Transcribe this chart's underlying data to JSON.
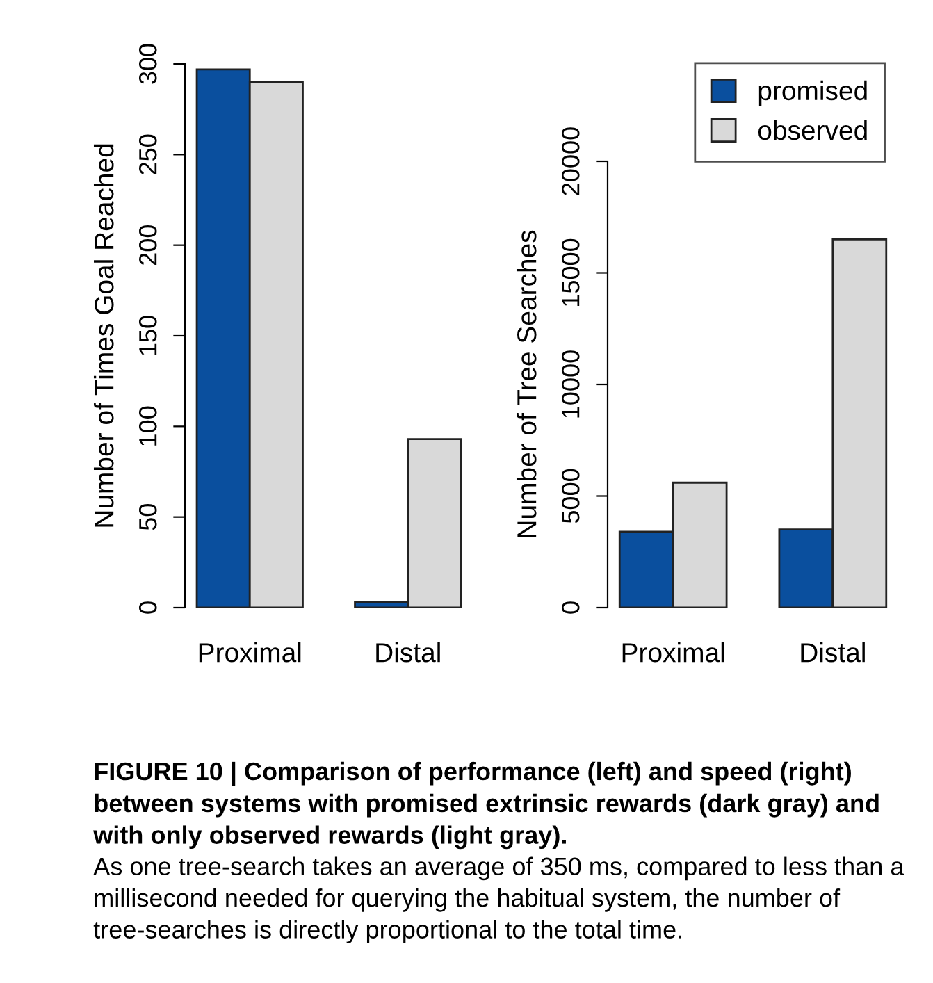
{
  "chart_data": [
    {
      "type": "bar",
      "categories": [
        "Proximal",
        "Distal"
      ],
      "ylabel": "Number of Times Goal Reached",
      "ylim": [
        0,
        300
      ],
      "yticks": [
        0,
        50,
        100,
        150,
        200,
        250,
        300
      ],
      "series": [
        {
          "color": "#0a4f9e",
          "values": [
            297,
            3
          ]
        },
        {
          "color": "#d9d9d9",
          "values": [
            290,
            93
          ]
        }
      ],
      "annotations": [
        "FIGURE 10 | Comparison of performance (left) and speed (right) between systems with promised extrinsic rewards (dark gray) and with only observed rewards (light gray).",
        "As one tree-search takes an average of 350 ms, compared to less than a millisecond needed for querying the habitual system, the number of tree-searches is directly proportional to the total time."
      ]
    },
    {
      "type": "bar",
      "categories": [
        "Proximal",
        "Distal"
      ],
      "ylabel": "Number of Tree Searches",
      "ylim": [
        0,
        20000
      ],
      "yticks": [
        0,
        5000,
        10000,
        15000,
        20000
      ],
      "legend": "top right",
      "series": [
        {
          "name": "promised",
          "color": "#0a4f9e",
          "values": [
            3400,
            3500
          ]
        },
        {
          "name": "observed",
          "color": "#d9d9d9",
          "values": [
            5600,
            16500
          ]
        }
      ]
    }
  ]
}
